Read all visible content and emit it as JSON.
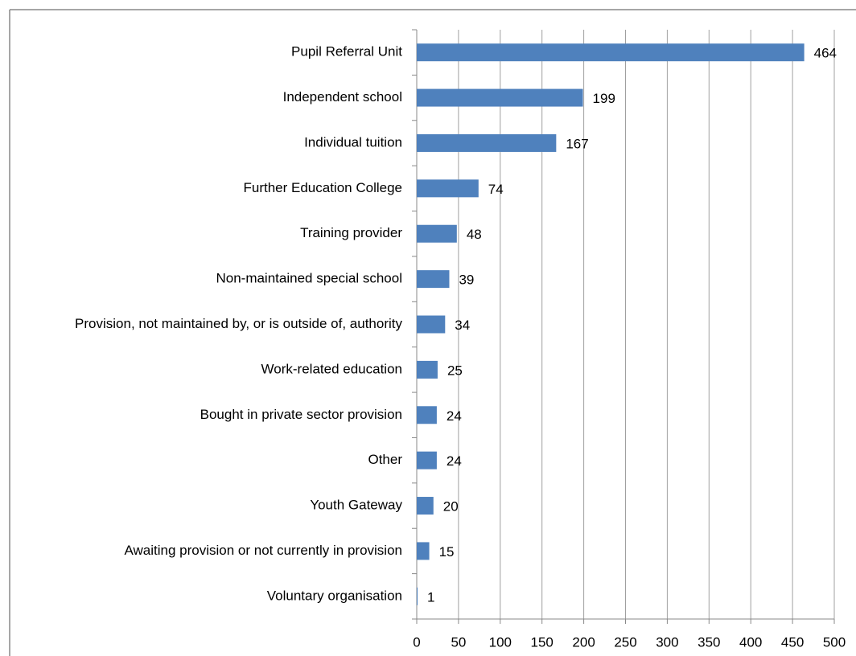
{
  "chart_data": {
    "type": "bar",
    "orientation": "horizontal",
    "categories": [
      "Pupil Referral Unit",
      "Independent school",
      "Individual tuition",
      "Further Education College",
      "Training provider",
      "Non-maintained special school",
      "Provision, not maintained by, or is outside of, authority",
      "Work-related education",
      "Bought in private sector provision",
      "Other",
      "Youth Gateway",
      "Awaiting provision or not currently in provision",
      "Voluntary organisation"
    ],
    "values": [
      464,
      199,
      167,
      74,
      48,
      39,
      34,
      25,
      24,
      24,
      20,
      15,
      1
    ],
    "color": "#4f81bd",
    "xlim": [
      0,
      500
    ],
    "xticks": [
      0,
      50,
      100,
      150,
      200,
      250,
      300,
      350,
      400,
      450,
      500
    ],
    "grid": true
  }
}
